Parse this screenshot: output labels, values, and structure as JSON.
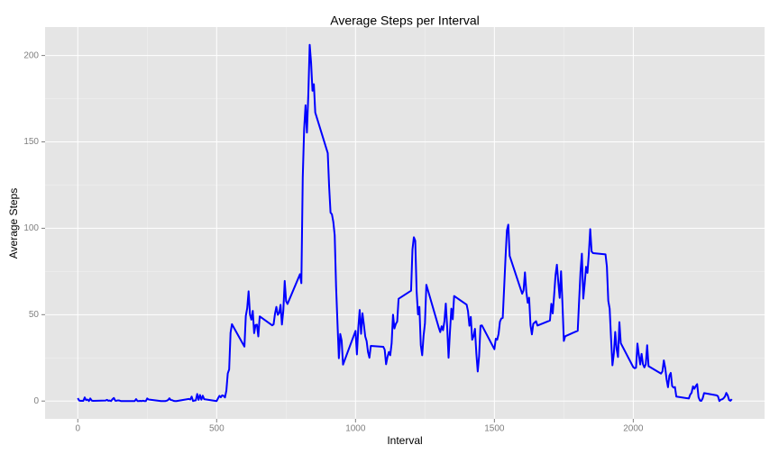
{
  "chart_data": {
    "type": "line",
    "title": "Average Steps per Interval",
    "x_label": "Interval",
    "y_label": "Average Steps",
    "x": [
      0,
      5,
      10,
      15,
      20,
      25,
      30,
      35,
      40,
      45,
      50,
      55,
      100,
      105,
      110,
      115,
      120,
      125,
      130,
      135,
      140,
      145,
      150,
      155,
      200,
      205,
      210,
      215,
      220,
      225,
      230,
      235,
      240,
      245,
      250,
      255,
      300,
      305,
      310,
      315,
      320,
      325,
      330,
      335,
      340,
      345,
      350,
      355,
      400,
      405,
      410,
      415,
      420,
      425,
      430,
      435,
      440,
      445,
      450,
      455,
      500,
      505,
      510,
      515,
      520,
      525,
      530,
      535,
      540,
      545,
      550,
      555,
      600,
      605,
      610,
      615,
      620,
      625,
      630,
      635,
      640,
      645,
      650,
      655,
      700,
      705,
      710,
      715,
      720,
      725,
      730,
      735,
      740,
      745,
      750,
      755,
      800,
      805,
      810,
      815,
      820,
      825,
      830,
      835,
      840,
      845,
      850,
      855,
      900,
      905,
      910,
      915,
      920,
      925,
      930,
      935,
      940,
      945,
      950,
      955,
      1000,
      1005,
      1010,
      1015,
      1020,
      1025,
      1030,
      1035,
      1040,
      1045,
      1050,
      1055,
      1100,
      1105,
      1110,
      1115,
      1120,
      1125,
      1130,
      1135,
      1140,
      1145,
      1150,
      1155,
      1200,
      1205,
      1210,
      1215,
      1220,
      1225,
      1230,
      1235,
      1240,
      1245,
      1250,
      1255,
      1300,
      1305,
      1310,
      1315,
      1320,
      1325,
      1330,
      1335,
      1340,
      1345,
      1350,
      1355,
      1400,
      1405,
      1410,
      1415,
      1420,
      1425,
      1430,
      1435,
      1440,
      1445,
      1450,
      1455,
      1500,
      1505,
      1510,
      1515,
      1520,
      1525,
      1530,
      1535,
      1540,
      1545,
      1550,
      1555,
      1600,
      1605,
      1610,
      1615,
      1620,
      1625,
      1630,
      1635,
      1640,
      1645,
      1650,
      1655,
      1700,
      1705,
      1710,
      1715,
      1720,
      1725,
      1730,
      1735,
      1740,
      1745,
      1750,
      1755,
      1800,
      1805,
      1810,
      1815,
      1820,
      1825,
      1830,
      1835,
      1840,
      1845,
      1850,
      1855,
      1900,
      1905,
      1910,
      1915,
      1920,
      1925,
      1930,
      1935,
      1940,
      1945,
      1950,
      1955,
      2000,
      2005,
      2010,
      2015,
      2020,
      2025,
      2030,
      2035,
      2040,
      2045,
      2050,
      2055,
      2100,
      2105,
      2110,
      2115,
      2120,
      2125,
      2130,
      2135,
      2140,
      2145,
      2150,
      2155,
      2200,
      2205,
      2210,
      2215,
      2220,
      2225,
      2230,
      2235,
      2240,
      2245,
      2250,
      2255,
      2300,
      2305,
      2310,
      2315,
      2320,
      2325,
      2330,
      2335,
      2340,
      2345,
      2350,
      2355
    ],
    "series": [
      {
        "color": "#0000ff",
        "values": [
          1.7,
          0.3,
          0.1,
          0.2,
          0.1,
          2.1,
          0.5,
          0.9,
          0,
          1.5,
          0.3,
          0.1,
          0.3,
          0.7,
          0.2,
          0.3,
          0,
          1.1,
          1.8,
          0.2,
          0.2,
          0.4,
          0.3,
          0,
          0,
          0,
          1.1,
          0,
          0,
          0.1,
          0,
          0.2,
          0,
          0,
          1.5,
          0.9,
          0,
          0,
          0,
          0,
          0.2,
          0.6,
          1.6,
          0.6,
          0.5,
          0.1,
          0,
          0,
          1.2,
          0.9,
          2.6,
          0,
          0.3,
          0.4,
          4.1,
          0.7,
          3.5,
          0.8,
          3.1,
          1.1,
          0,
          1.6,
          3,
          2.2,
          3.3,
          3,
          2.1,
          6.1,
          16,
          18.3,
          39.5,
          44.5,
          31.5,
          49.3,
          53.8,
          63.5,
          50,
          47.1,
          52.2,
          39.3,
          44,
          44.2,
          37.4,
          49,
          43.8,
          44.4,
          50.5,
          54.5,
          49.9,
          51,
          55.7,
          44.3,
          52.3,
          69.5,
          57.8,
          56.2,
          73.4,
          68.2,
          129.4,
          157.5,
          171.2,
          155.4,
          177.3,
          206.2,
          195.9,
          179.6,
          183.4,
          167,
          143.5,
          124,
          109.1,
          108.1,
          103.7,
          96,
          66.2,
          45.2,
          24.8,
          38.8,
          35,
          21.1,
          40.6,
          27,
          42.4,
          52.7,
          38.9,
          50.8,
          44.3,
          37.4,
          34.7,
          28.3,
          25.1,
          31.9,
          31.4,
          29.7,
          21.3,
          25.5,
          28.4,
          26.5,
          33.4,
          50,
          42,
          44.6,
          46,
          59.2,
          63.9,
          87.7,
          94.8,
          92.8,
          63.4,
          50.2,
          54.5,
          32.4,
          26.5,
          37.7,
          45.1,
          67.3,
          42.3,
          39.9,
          43.3,
          41,
          46.2,
          56.4,
          42.8,
          25.1,
          40,
          53.5,
          47.3,
          60.8,
          55.8,
          52,
          43.6,
          48.7,
          35.5,
          37.5,
          41.8,
          27.5,
          17.1,
          26.1,
          43.6,
          43.8,
          30,
          36.1,
          35.5,
          38.8,
          46,
          47.8,
          48.1,
          65.3,
          82.9,
          98.7,
          102.1,
          84,
          62.1,
          64.1,
          74.5,
          63.2,
          56.9,
          59.8,
          43.9,
          38.6,
          44.7,
          45.5,
          46.2,
          43.7,
          46.6,
          56.3,
          50.7,
          61.2,
          72.7,
          78.9,
          68.9,
          59.7,
          75.1,
          56.5,
          34.8,
          37.5,
          40.7,
          58,
          74.7,
          85.3,
          59.3,
          67.8,
          77.7,
          74.2,
          85.3,
          99.5,
          86.6,
          85.6,
          84.9,
          77.8,
          58,
          53.4,
          36.3,
          20.7,
          27.4,
          40,
          30.2,
          25.5,
          45.7,
          33.5,
          19.6,
          19,
          19.3,
          33.3,
          26.8,
          21.2,
          27.3,
          21.3,
          19.5,
          21.3,
          32.3,
          20.2,
          15.9,
          17.2,
          23.5,
          19.2,
          12.5,
          8,
          14.7,
          16.3,
          8.7,
          7.8,
          8.1,
          2.6,
          1.5,
          3.7,
          4.8,
          8.5,
          7.1,
          8.7,
          9.8,
          2.2,
          0.3,
          0.1,
          1.6,
          4.6,
          3.3,
          2.8,
          0,
          0.8,
          1,
          1.6,
          2.6,
          4.7,
          3.3,
          0.6,
          0.2,
          1.1
        ]
      }
    ],
    "xlim": [
      -117.75,
      2472.75
    ],
    "xticks": [
      0,
      500,
      1000,
      1500,
      2000
    ],
    "ylim": [
      -10.31,
      216.48
    ],
    "yticks": [
      0,
      50,
      100,
      150,
      200
    ],
    "grid": true
  }
}
